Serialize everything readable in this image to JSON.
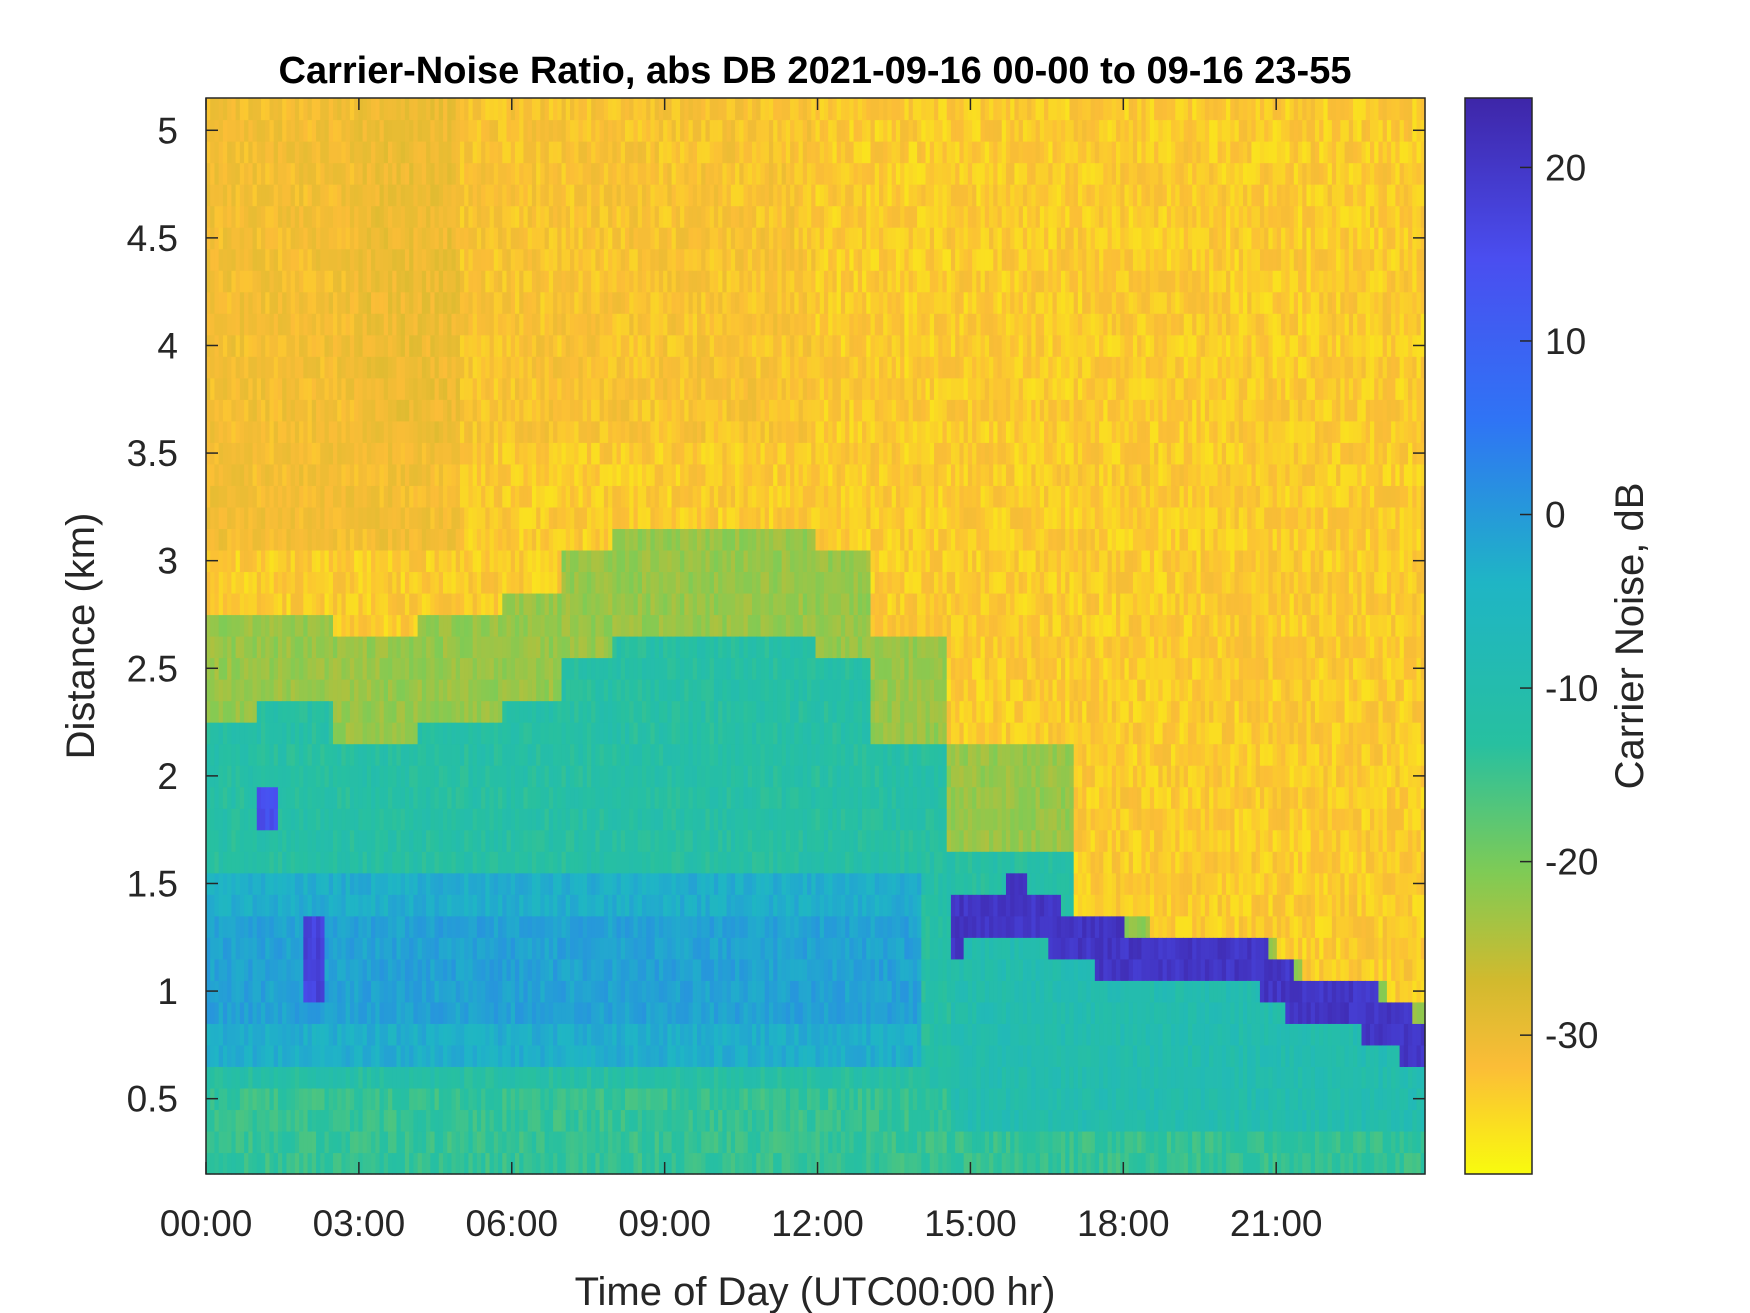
{
  "chart_data": {
    "type": "heatmap",
    "title": "Carrier-Noise Ratio, abs DB 2021-09-16 00-00 to 09-16 23-55",
    "xlabel": "Time of Day (UTC00:00 hr)",
    "ylabel": "Distance (km)",
    "colorbar_label": "Carrier Noise, dB",
    "colormap": "parula (reversed: yellow = low, dark blue = high)",
    "x_tick_labels": [
      "00:00",
      "03:00",
      "06:00",
      "09:00",
      "12:00",
      "15:00",
      "18:00",
      "21:00"
    ],
    "x_ticks_hours": [
      0,
      3,
      6,
      9,
      12,
      15,
      18,
      21
    ],
    "xlim_hours": [
      0,
      23.92
    ],
    "y_ticks": [
      0.5,
      1,
      1.5,
      2,
      2.5,
      3,
      3.5,
      4,
      4.5,
      5
    ],
    "y_tick_labels": [
      "0.5",
      "1",
      "1.5",
      "2",
      "2.5",
      "3",
      "3.5",
      "4",
      "4.5",
      "5"
    ],
    "ylim_km": [
      0.15,
      5.15
    ],
    "colorbar_ticks": [
      20,
      10,
      0,
      -10,
      -20,
      -30
    ],
    "colorbar_tick_labels": [
      "20",
      "10",
      "0",
      "-10",
      "-20",
      "-30"
    ],
    "clim_db": [
      -38,
      24
    ],
    "grid": false,
    "features": [
      {
        "description": "strong return layer (boundary layer top)",
        "points_hours_km": [
          [
            14.6,
            1.3
          ],
          [
            16.0,
            1.4
          ],
          [
            17.0,
            1.25
          ],
          [
            18.5,
            1.15
          ],
          [
            20.5,
            1.15
          ],
          [
            21.5,
            0.95
          ],
          [
            22.5,
            0.95
          ],
          [
            23.9,
            0.75
          ]
        ],
        "db": 20
      },
      {
        "description": "early-morning strong band",
        "points_hours_km": [
          [
            1.2,
            1.85
          ],
          [
            2.1,
            1.1
          ]
        ],
        "db": 17
      }
    ]
  },
  "colors": {
    "yellow": "#f9fb0e",
    "orange": "#fbbd37",
    "green": "#6ccc65",
    "cyan": "#1fb5c5",
    "blue": "#2f74f5",
    "dark_blue": "#3e26a8"
  }
}
